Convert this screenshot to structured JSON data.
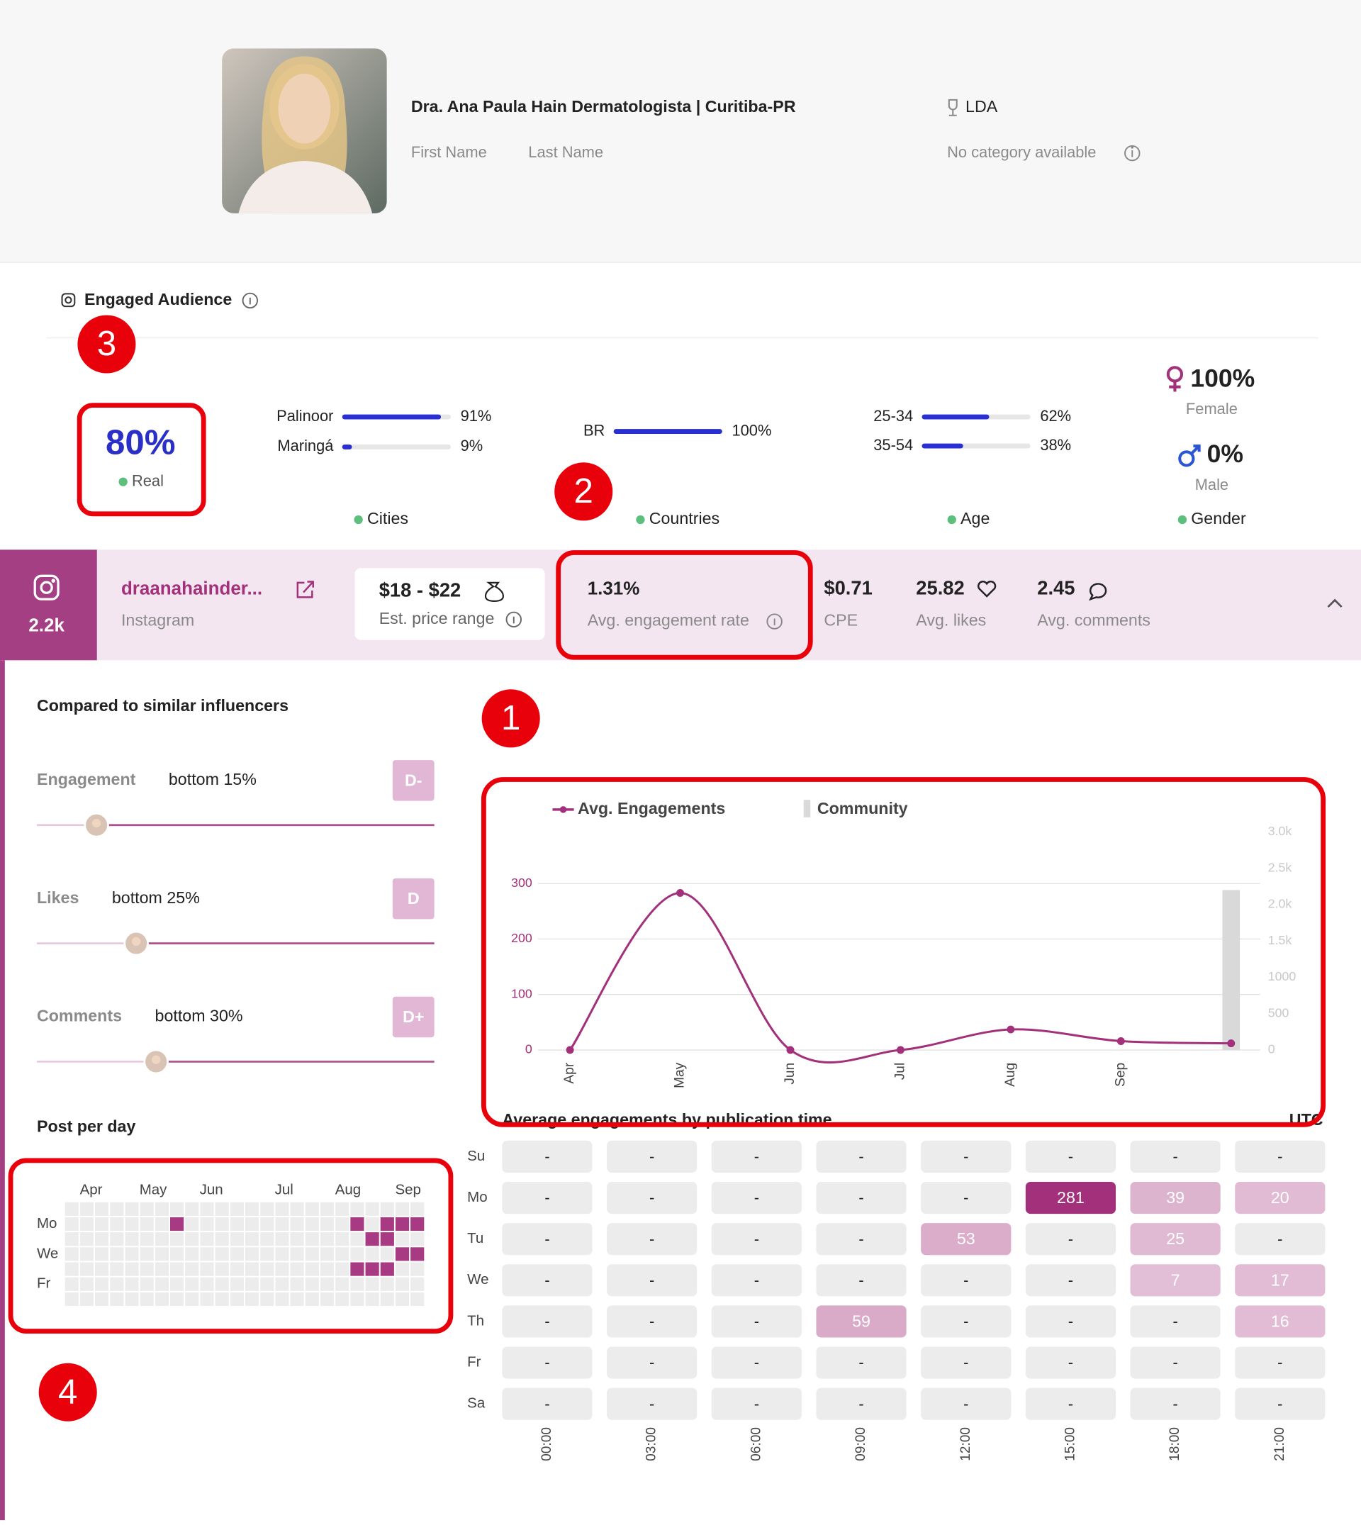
{
  "header": {
    "name": "Dra. Ana Paula Hain Dermatologista | Curitiba-PR",
    "first_name": "First Name",
    "last_name": "Last Name",
    "location": "LDA",
    "category": "No category available"
  },
  "audience": {
    "title": "Engaged Audience",
    "real": {
      "value": "80%",
      "label": "Real"
    },
    "cities": {
      "label": "Cities",
      "categories": [
        "Palinoor",
        "Maringá"
      ],
      "values": [
        91,
        9
      ],
      "value_labels": [
        "91%",
        "9%"
      ]
    },
    "countries": {
      "label": "Countries",
      "categories": [
        "BR"
      ],
      "values": [
        100
      ],
      "value_labels": [
        "100%"
      ]
    },
    "age": {
      "label": "Age",
      "categories": [
        "25-34",
        "35-54"
      ],
      "values": [
        62,
        38
      ],
      "value_labels": [
        "62%",
        "38%"
      ]
    },
    "gender": {
      "label": "Gender",
      "female": {
        "value": "100%",
        "label": "Female"
      },
      "male": {
        "value": "0%",
        "label": "Male"
      }
    }
  },
  "profile": {
    "followers": "2.2k",
    "handle": "draanahainder...",
    "platform": "Instagram",
    "price": "$18 - $22",
    "price_label": "Est. price range",
    "engagement_rate": "1.31%",
    "engagement_rate_label": "Avg. engagement rate",
    "cpe": "$0.71",
    "cpe_label": "CPE",
    "likes": "25.82",
    "likes_label": "Avg. likes",
    "comments": "2.45",
    "comments_label": "Avg. comments"
  },
  "comparison": {
    "title": "Compared to similar influencers",
    "items": [
      {
        "name": "Engagement",
        "value": 15,
        "value_label": "bottom 15%",
        "grade": "D-"
      },
      {
        "name": "Likes",
        "value": 25,
        "value_label": "bottom 25%",
        "grade": "D"
      },
      {
        "name": "Comments",
        "value": 30,
        "value_label": "bottom 30%",
        "grade": "D+"
      }
    ]
  },
  "posts_per_day": {
    "title": "Post per day",
    "months": [
      "Apr",
      "May",
      "Jun",
      "Jul",
      "Aug",
      "Sep"
    ],
    "days": [
      "Mo",
      "We",
      "Fr"
    ],
    "posts": [
      {
        "week": 7,
        "day": 1,
        "count": 1
      },
      {
        "week": 19,
        "day": 1,
        "count": 1
      },
      {
        "week": 21,
        "day": 1,
        "count": 1
      },
      {
        "week": 22,
        "day": 1,
        "count": 1
      },
      {
        "week": 23,
        "day": 1,
        "count": 1
      },
      {
        "week": 20,
        "day": 2,
        "count": 1
      },
      {
        "week": 21,
        "day": 2,
        "count": 1
      },
      {
        "week": 22,
        "day": 3,
        "count": 1
      },
      {
        "week": 23,
        "day": 3,
        "count": 1
      },
      {
        "week": 19,
        "day": 4,
        "count": 1
      },
      {
        "week": 20,
        "day": 4,
        "count": 1
      },
      {
        "week": 21,
        "day": 4,
        "count": 1
      }
    ]
  },
  "chart_data": {
    "type": "line",
    "categories": [
      "Apr",
      "May",
      "Jun",
      "Jul",
      "Aug",
      "Sep",
      null
    ],
    "series": [
      {
        "name": "Avg. Engagements",
        "color": "#a3307a",
        "values": [
          0,
          283,
          0,
          0,
          37,
          16,
          12
        ]
      },
      {
        "name": "Community",
        "color": "#d9d9d9",
        "type": "bar",
        "axis": "y2",
        "values": [
          null,
          null,
          null,
          null,
          null,
          null,
          2200
        ]
      }
    ],
    "ylim": [
      0,
      393
    ],
    "yticks": [
      0,
      100,
      200,
      300
    ],
    "y2lim": [
      0,
      3000
    ],
    "y2ticks": [
      0,
      500,
      1000,
      {
        "value": 1500,
        "label": "1.5k"
      },
      {
        "value": 2000,
        "label": "2.0k"
      },
      {
        "value": 2500,
        "label": "2.5k"
      },
      {
        "value": 3000,
        "label": "3.0k"
      }
    ],
    "grid": true
  },
  "heatmap": {
    "title": "Average engagements by publication time",
    "timezone": "UTC",
    "rows": [
      "Su",
      "Mo",
      "Tu",
      "We",
      "Th",
      "Fr",
      "Sa"
    ],
    "columns": [
      "00:00",
      "03:00",
      "06:00",
      "09:00",
      "12:00",
      "15:00",
      "18:00",
      "21:00"
    ],
    "values": [
      [
        null,
        null,
        null,
        null,
        null,
        null,
        null,
        null
      ],
      [
        null,
        null,
        null,
        null,
        null,
        281,
        39,
        20
      ],
      [
        null,
        null,
        null,
        null,
        53,
        null,
        25,
        null
      ],
      [
        null,
        null,
        null,
        null,
        null,
        null,
        7,
        17
      ],
      [
        null,
        null,
        null,
        59,
        null,
        null,
        null,
        16
      ],
      [
        null,
        null,
        null,
        null,
        null,
        null,
        null,
        null
      ],
      [
        null,
        null,
        null,
        null,
        null,
        null,
        null,
        null
      ]
    ],
    "empty_label": "-"
  },
  "annotations": [
    "1",
    "2",
    "3",
    "4"
  ]
}
